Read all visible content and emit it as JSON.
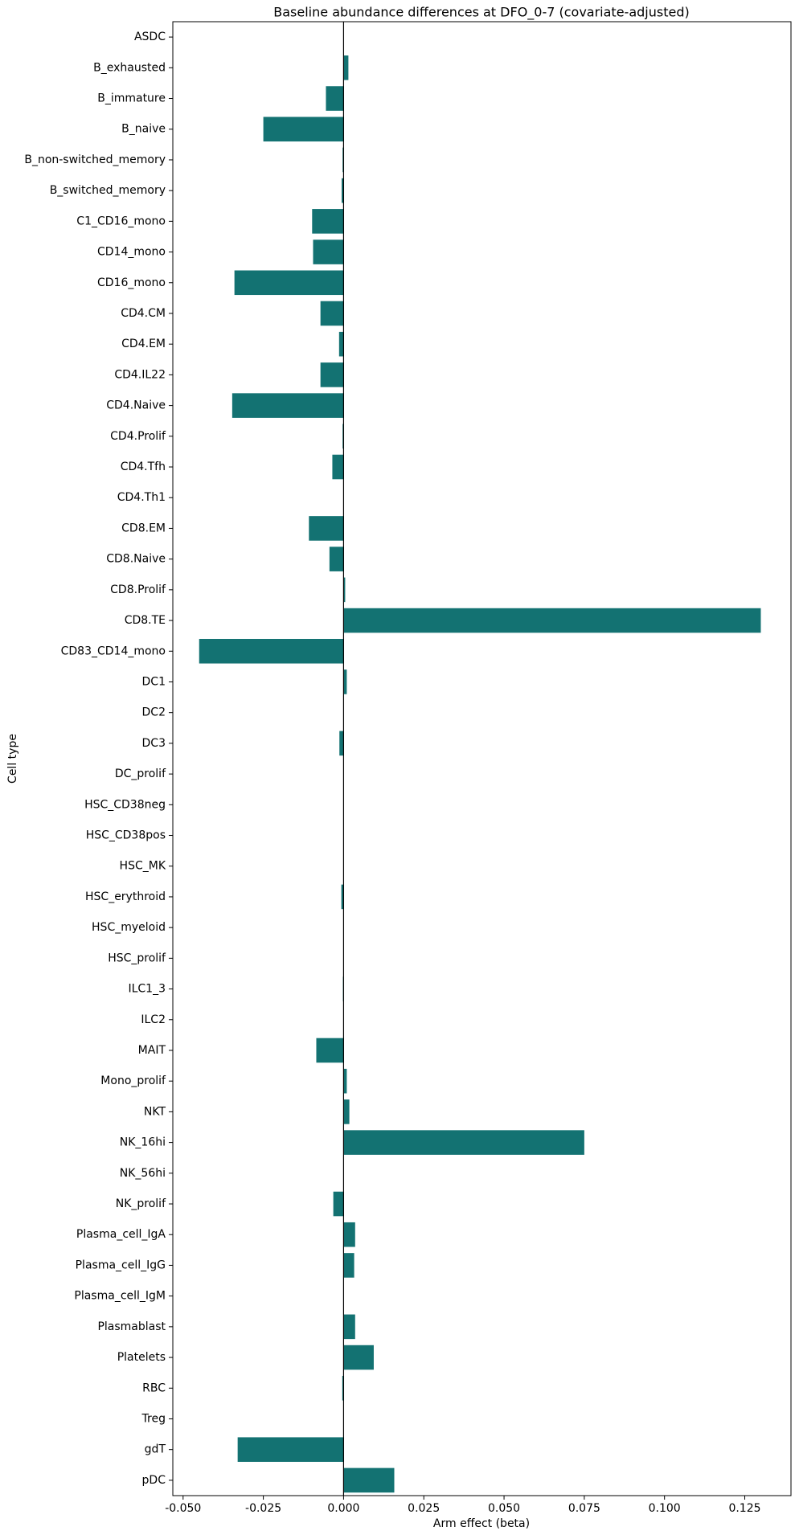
{
  "chart_data": {
    "type": "barh",
    "title": "Baseline abundance differences at DFO_0-7 (covariate-adjusted)",
    "xlabel": "Arm effect (beta)",
    "ylabel": "Cell type",
    "color": "#137272",
    "categories": [
      "ASDC",
      "B_exhausted",
      "B_immature",
      "B_naive",
      "B_non-switched_memory",
      "B_switched_memory",
      "C1_CD16_mono",
      "CD14_mono",
      "CD16_mono",
      "CD4.CM",
      "CD4.EM",
      "CD4.IL22",
      "CD4.Naive",
      "CD4.Prolif",
      "CD4.Tfh",
      "CD4.Th1",
      "CD8.EM",
      "CD8.Naive",
      "CD8.Prolif",
      "CD8.TE",
      "CD83_CD14_mono",
      "DC1",
      "DC2",
      "DC3",
      "DC_prolif",
      "HSC_CD38neg",
      "HSC_CD38pos",
      "HSC_MK",
      "HSC_erythroid",
      "HSC_myeloid",
      "HSC_prolif",
      "ILC1_3",
      "ILC2",
      "MAIT",
      "Mono_prolif",
      "NKT",
      "NK_16hi",
      "NK_56hi",
      "NK_prolif",
      "Plasma_cell_IgA",
      "Plasma_cell_IgG",
      "Plasma_cell_IgM",
      "Plasmablast",
      "Platelets",
      "RBC",
      "Treg",
      "gdT",
      "pDC"
    ],
    "values": [
      0,
      0.0015,
      -0.0055,
      -0.025,
      -0.0003,
      -0.0006,
      -0.0098,
      -0.0095,
      -0.034,
      -0.0072,
      -0.0014,
      -0.0072,
      -0.0347,
      -0.0003,
      -0.0035,
      0,
      -0.0108,
      -0.0044,
      0.0005,
      0.13,
      -0.045,
      0.001,
      0,
      -0.0013,
      0,
      0,
      0,
      0,
      -0.0007,
      0,
      0,
      -0.0002,
      0,
      -0.0085,
      0.001,
      0.0018,
      0.075,
      0,
      -0.0032,
      0.0036,
      0.0033,
      0,
      0.0036,
      0.0094,
      -0.0004,
      0,
      -0.033,
      0.0158
    ],
    "xlim": [
      -0.0532,
      0.1394
    ],
    "xticks": [
      {
        "value": -0.05,
        "label": "-0.050"
      },
      {
        "value": -0.025,
        "label": "-0.025"
      },
      {
        "value": 0,
        "label": "0.000"
      },
      {
        "value": 0.025,
        "label": "0.025"
      },
      {
        "value": 0.05,
        "label": "0.050"
      },
      {
        "value": 0.075,
        "label": "0.075"
      },
      {
        "value": 0.1,
        "label": "0.100"
      },
      {
        "value": 0.125,
        "label": "0.125"
      }
    ]
  }
}
